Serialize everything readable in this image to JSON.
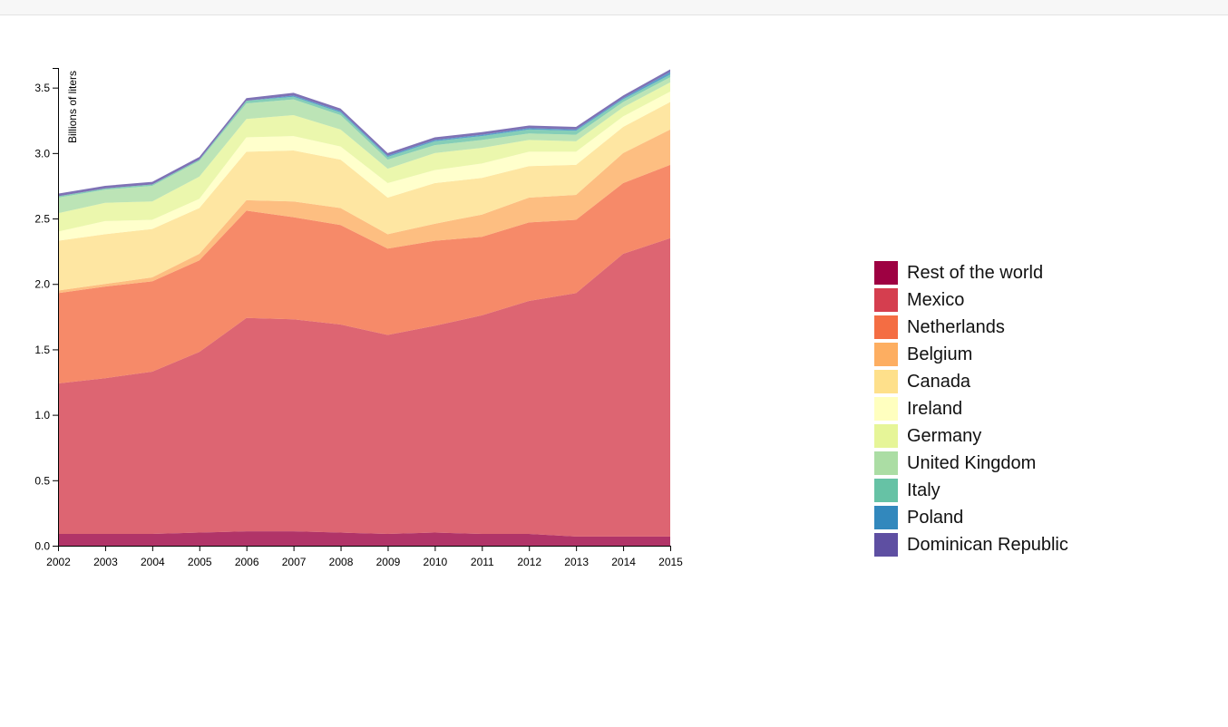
{
  "chart_data": {
    "type": "area",
    "stacked": true,
    "ylabel": "Billions of liters",
    "x": [
      2002,
      2003,
      2004,
      2005,
      2006,
      2007,
      2008,
      2009,
      2010,
      2011,
      2012,
      2013,
      2014,
      2015
    ],
    "ylim": [
      0,
      3.65
    ],
    "yticks": [
      "0.0",
      "0.5",
      "1.0",
      "1.5",
      "2.0",
      "2.5",
      "3.0",
      "3.5"
    ],
    "legend_position": "right",
    "series": [
      {
        "name": "Rest of the world",
        "color": "#9e0142",
        "values": [
          0.09,
          0.09,
          0.09,
          0.1,
          0.11,
          0.11,
          0.1,
          0.09,
          0.1,
          0.09,
          0.09,
          0.07,
          0.07,
          0.07
        ]
      },
      {
        "name": "Mexico",
        "color": "#d53e4f",
        "values": [
          1.15,
          1.19,
          1.24,
          1.38,
          1.63,
          1.62,
          1.59,
          1.52,
          1.58,
          1.67,
          1.78,
          1.86,
          2.16,
          2.28
        ]
      },
      {
        "name": "Netherlands",
        "color": "#f46d43",
        "values": [
          0.69,
          0.7,
          0.69,
          0.7,
          0.82,
          0.78,
          0.76,
          0.66,
          0.65,
          0.6,
          0.6,
          0.56,
          0.54,
          0.56
        ]
      },
      {
        "name": "Belgium",
        "color": "#fdae61",
        "values": [
          0.02,
          0.02,
          0.03,
          0.05,
          0.08,
          0.12,
          0.13,
          0.11,
          0.13,
          0.17,
          0.19,
          0.19,
          0.23,
          0.27
        ]
      },
      {
        "name": "Canada",
        "color": "#fee08b",
        "values": [
          0.38,
          0.38,
          0.37,
          0.35,
          0.37,
          0.39,
          0.37,
          0.28,
          0.31,
          0.28,
          0.24,
          0.23,
          0.2,
          0.21
        ]
      },
      {
        "name": "Ireland",
        "color": "#ffffbf",
        "values": [
          0.07,
          0.1,
          0.07,
          0.07,
          0.11,
          0.11,
          0.1,
          0.11,
          0.1,
          0.11,
          0.11,
          0.1,
          0.08,
          0.08
        ]
      },
      {
        "name": "Germany",
        "color": "#e6f598",
        "values": [
          0.14,
          0.14,
          0.14,
          0.17,
          0.14,
          0.16,
          0.13,
          0.11,
          0.13,
          0.12,
          0.09,
          0.08,
          0.07,
          0.07
        ]
      },
      {
        "name": "United Kingdom",
        "color": "#abdda4",
        "values": [
          0.12,
          0.1,
          0.12,
          0.12,
          0.12,
          0.12,
          0.11,
          0.07,
          0.06,
          0.06,
          0.05,
          0.05,
          0.04,
          0.04
        ]
      },
      {
        "name": "Italy",
        "color": "#66c2a5",
        "values": [
          0.01,
          0.01,
          0.01,
          0.01,
          0.02,
          0.02,
          0.02,
          0.02,
          0.03,
          0.03,
          0.03,
          0.03,
          0.02,
          0.02
        ]
      },
      {
        "name": "Poland",
        "color": "#3288bd",
        "values": [
          0.0,
          0.0,
          0.0,
          0.0,
          0.0,
          0.01,
          0.01,
          0.01,
          0.01,
          0.01,
          0.01,
          0.01,
          0.01,
          0.02
        ]
      },
      {
        "name": "Dominican Republic",
        "color": "#5e4fa2",
        "values": [
          0.02,
          0.02,
          0.02,
          0.02,
          0.02,
          0.02,
          0.02,
          0.02,
          0.02,
          0.02,
          0.02,
          0.02,
          0.02,
          0.02
        ]
      }
    ]
  }
}
